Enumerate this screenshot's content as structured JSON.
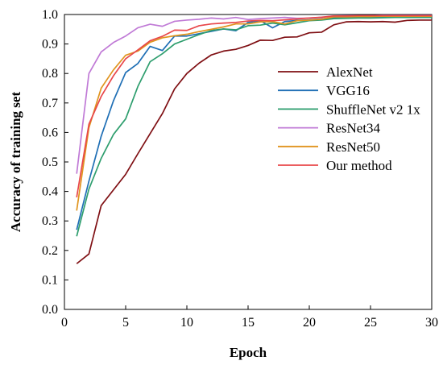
{
  "chart_data": {
    "type": "line",
    "xlabel": "Epoch",
    "ylabel": "Accuracy of training set",
    "xlim": [
      0,
      30
    ],
    "ylim": [
      0.0,
      1.0
    ],
    "xticks": [
      0,
      5,
      10,
      15,
      20,
      25,
      30
    ],
    "xtick_labels": [
      "0",
      "5",
      "10",
      "15",
      "20",
      "25",
      "30"
    ],
    "yticks": [
      0.0,
      0.1,
      0.2,
      0.3,
      0.4,
      0.5,
      0.6,
      0.7,
      0.8,
      0.9,
      1.0
    ],
    "ytick_labels": [
      "0.0",
      "0.1",
      "0.2",
      "0.3",
      "0.4",
      "0.5",
      "0.6",
      "0.7",
      "0.8",
      "0.9",
      "1.0"
    ],
    "grid": false,
    "legend_position": "center-right",
    "x": [
      1,
      2,
      3,
      4,
      5,
      6,
      7,
      8,
      9,
      10,
      11,
      12,
      13,
      14,
      15,
      16,
      17,
      18,
      19,
      20,
      21,
      22,
      23,
      24,
      25,
      26,
      27,
      28,
      29,
      30
    ],
    "series": [
      {
        "name": "AlexNet",
        "color": "#7f0f13",
        "values": [
          0.155,
          0.188,
          0.352,
          0.405,
          0.458,
          0.528,
          0.596,
          0.664,
          0.748,
          0.8,
          0.835,
          0.863,
          0.876,
          0.882,
          0.895,
          0.913,
          0.912,
          0.923,
          0.924,
          0.938,
          0.94,
          0.965,
          0.975,
          0.976,
          0.975,
          0.976,
          0.974,
          0.98,
          0.981,
          0.981
        ]
      },
      {
        "name": "VGG16",
        "color": "#1f6fb5",
        "values": [
          0.27,
          0.435,
          0.587,
          0.707,
          0.803,
          0.834,
          0.892,
          0.878,
          0.927,
          0.927,
          0.935,
          0.943,
          0.951,
          0.945,
          0.973,
          0.979,
          0.955,
          0.976,
          0.98,
          0.982,
          0.985,
          0.99,
          0.99,
          0.991,
          0.991,
          0.992,
          0.993,
          0.993,
          0.993,
          0.993
        ]
      },
      {
        "name": "ShuffleNet v2 1x",
        "color": "#2e9e6e",
        "values": [
          0.248,
          0.408,
          0.512,
          0.593,
          0.646,
          0.756,
          0.84,
          0.867,
          0.9,
          0.916,
          0.932,
          0.946,
          0.951,
          0.948,
          0.962,
          0.964,
          0.971,
          0.965,
          0.972,
          0.979,
          0.981,
          0.986,
          0.987,
          0.988,
          0.988,
          0.989,
          0.99,
          0.99,
          0.99,
          0.99
        ]
      },
      {
        "name": "ResNet34",
        "color": "#c07ad6",
        "values": [
          0.46,
          0.8,
          0.873,
          0.905,
          0.927,
          0.955,
          0.967,
          0.96,
          0.977,
          0.981,
          0.984,
          0.988,
          0.985,
          0.99,
          0.983,
          0.986,
          0.988,
          0.99,
          0.987,
          0.988,
          0.99,
          0.995,
          0.996,
          0.996,
          0.996,
          0.997,
          0.997,
          0.997,
          0.997,
          0.997
        ]
      },
      {
        "name": "ResNet50",
        "color": "#e0941e",
        "values": [
          0.335,
          0.616,
          0.75,
          0.812,
          0.862,
          0.876,
          0.906,
          0.921,
          0.928,
          0.933,
          0.942,
          0.95,
          0.958,
          0.968,
          0.968,
          0.975,
          0.976,
          0.968,
          0.979,
          0.981,
          0.984,
          0.992,
          0.992,
          0.993,
          0.993,
          0.994,
          0.994,
          0.994,
          0.994,
          0.994
        ]
      },
      {
        "name": "Our method",
        "color": "#e8474a",
        "values": [
          0.38,
          0.628,
          0.722,
          0.792,
          0.85,
          0.88,
          0.911,
          0.926,
          0.947,
          0.946,
          0.962,
          0.968,
          0.971,
          0.973,
          0.978,
          0.98,
          0.979,
          0.982,
          0.985,
          0.988,
          0.991,
          0.995,
          0.995,
          0.996,
          0.996,
          0.996,
          0.996,
          0.996,
          0.996,
          0.996
        ]
      }
    ]
  }
}
